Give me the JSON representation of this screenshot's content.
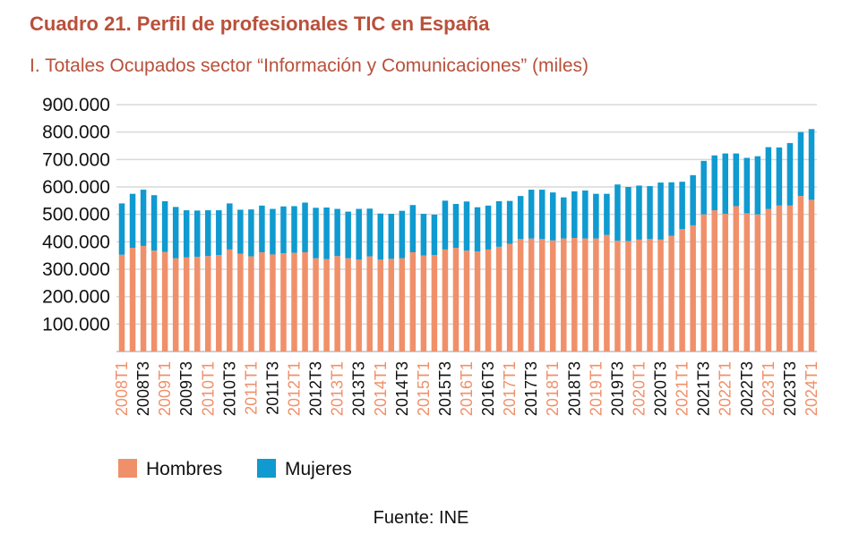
{
  "chart_data": {
    "type": "bar",
    "stacked": true,
    "title": "Cuadro 21. Perfil de profesionales TIC en España",
    "subtitle": "I. Totales Ocupados sector “Información y Comunicaciones” (miles)",
    "ylim": [
      0,
      900000
    ],
    "y_ticks": [
      "100.000",
      "200.000",
      "300.000",
      "400.000",
      "500.000",
      "600.000",
      "700.000",
      "800.000",
      "900.000"
    ],
    "y_tick_values": [
      100000,
      200000,
      300000,
      400000,
      500000,
      600000,
      700000,
      800000,
      900000
    ],
    "grid": true,
    "legend_position": "bottom-left",
    "categories": [
      "2008T1",
      "2008T2",
      "2008T3",
      "2008T4",
      "2009T1",
      "2009T2",
      "2009T3",
      "2009T4",
      "2010T1",
      "2010T2",
      "2010T3",
      "2010T4",
      "2011T1",
      "2011T2",
      "2011T3",
      "2011T4",
      "2012T1",
      "2012T2",
      "2012T3",
      "2012T4",
      "2013T1",
      "2013T2",
      "2013T3",
      "2013T4",
      "2014T1",
      "2014T2",
      "2014T3",
      "2014T4",
      "2015T1",
      "2015T2",
      "2015T3",
      "2015T4",
      "2016T1",
      "2016T2",
      "2016T3",
      "2016T4",
      "2017T1",
      "2017T2",
      "2017T3",
      "2017T4",
      "2018T1",
      "2018T2",
      "2018T3",
      "2018T4",
      "2019T1",
      "2019T2",
      "2019T3",
      "2019T4",
      "2020T1",
      "2020T2",
      "2020T3",
      "2020T4",
      "2021T1",
      "2021T2",
      "2021T3",
      "2021T4",
      "2022T1",
      "2022T2",
      "2022T3",
      "2022T4",
      "2023T1",
      "2023T2",
      "2023T3",
      "2023T4",
      "2024T1"
    ],
    "visible_tick_labels": [
      {
        "label": "2008T1",
        "color": "#f0906a"
      },
      {
        "label": "2008T3",
        "color": "#111111"
      },
      {
        "label": "2009T1",
        "color": "#f0906a"
      },
      {
        "label": "2009T3",
        "color": "#111111"
      },
      {
        "label": "2010T1",
        "color": "#f0906a"
      },
      {
        "label": "2010T3",
        "color": "#111111"
      },
      {
        "label": "2011T1",
        "color": "#f0906a"
      },
      {
        "label": "2011T3",
        "color": "#111111"
      },
      {
        "label": "2012T1",
        "color": "#f0906a"
      },
      {
        "label": "2012T3",
        "color": "#111111"
      },
      {
        "label": "2013T1",
        "color": "#f0906a"
      },
      {
        "label": "2013T3",
        "color": "#111111"
      },
      {
        "label": "2014T1",
        "color": "#f0906a"
      },
      {
        "label": "2014T3",
        "color": "#111111"
      },
      {
        "label": "2015T1",
        "color": "#f0906a"
      },
      {
        "label": "2015T3",
        "color": "#111111"
      },
      {
        "label": "2016T1",
        "color": "#f0906a"
      },
      {
        "label": "2016T3",
        "color": "#111111"
      },
      {
        "label": "2017T1",
        "color": "#f0906a"
      },
      {
        "label": "2017T3",
        "color": "#111111"
      },
      {
        "label": "2018T1",
        "color": "#f0906a"
      },
      {
        "label": "2018T3",
        "color": "#111111"
      },
      {
        "label": "2019T1",
        "color": "#f0906a"
      },
      {
        "label": "2019T3",
        "color": "#111111"
      },
      {
        "label": "2020T1",
        "color": "#f0906a"
      },
      {
        "label": "2020T3",
        "color": "#111111"
      },
      {
        "label": "2021T1",
        "color": "#f0906a"
      },
      {
        "label": "2021T3",
        "color": "#111111"
      },
      {
        "label": "2022T1",
        "color": "#f0906a"
      },
      {
        "label": "2022T3",
        "color": "#111111"
      },
      {
        "label": "2023T1",
        "color": "#f0906a"
      },
      {
        "label": "2023T3",
        "color": "#111111"
      },
      {
        "label": "2024T1",
        "color": "#f0906a"
      }
    ],
    "series": [
      {
        "name": "Hombres",
        "color": "#f0906a",
        "values": [
          353000,
          378000,
          385000,
          368000,
          363000,
          340000,
          343000,
          345000,
          348000,
          352000,
          372000,
          357000,
          347000,
          362000,
          354000,
          358000,
          360000,
          362000,
          340000,
          337000,
          348000,
          340000,
          335000,
          347000,
          335000,
          338000,
          340000,
          362000,
          350000,
          352000,
          372000,
          378000,
          368000,
          365000,
          372000,
          382000,
          393000,
          410000,
          412000,
          410000,
          405000,
          412000,
          414000,
          412000,
          412000,
          425000,
          404000,
          403000,
          408000,
          410000,
          408000,
          422000,
          446000,
          460000,
          500000,
          515000,
          502000,
          530000,
          504000,
          500000,
          520000,
          532000,
          532000,
          567000,
          553000
        ]
      },
      {
        "name": "Mujeres",
        "color": "#0f9ad0",
        "values": [
          187000,
          197000,
          205000,
          202000,
          185000,
          187000,
          172000,
          169000,
          167000,
          163000,
          168000,
          160000,
          171000,
          170000,
          166000,
          171000,
          170000,
          181000,
          184000,
          188000,
          172000,
          170000,
          185000,
          174000,
          168000,
          164000,
          173000,
          172000,
          152000,
          147000,
          178000,
          160000,
          179000,
          161000,
          160000,
          166000,
          156000,
          157000,
          178000,
          180000,
          175000,
          150000,
          170000,
          175000,
          163000,
          150000,
          205000,
          197000,
          197000,
          193000,
          208000,
          195000,
          173000,
          183000,
          195000,
          200000,
          220000,
          192000,
          202000,
          212000,
          225000,
          212000,
          228000,
          233000,
          258000
        ]
      }
    ]
  },
  "legend": [
    {
      "label": "Hombres",
      "color": "#f0906a"
    },
    {
      "label": "Mujeres",
      "color": "#0f9ad0"
    }
  ],
  "source": "Fuente: INE"
}
